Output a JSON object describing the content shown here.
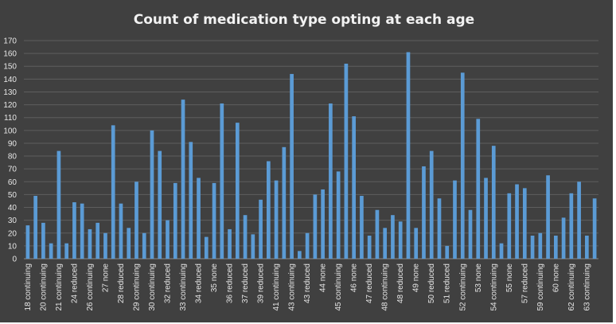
{
  "chart_data": {
    "type": "bar",
    "title": "Count of medication type opting at each age",
    "xlabel": "",
    "ylabel": "",
    "ylim": [
      0,
      170
    ],
    "yticks": [
      0,
      10,
      20,
      30,
      40,
      50,
      60,
      70,
      80,
      90,
      100,
      110,
      120,
      130,
      140,
      150,
      160,
      170
    ],
    "grid": true,
    "legend": "none",
    "bar_color": "#5b9bd5",
    "background_color": "#404040",
    "categories": [
      "18 continuing",
      "",
      "20 continuing",
      "",
      "21 continuing",
      "",
      "24 reduced",
      "",
      "26 continuing",
      "",
      "27 none",
      "",
      "28 reduced",
      "",
      "29 continuing",
      "",
      "30 continuing",
      "",
      "32 reduced",
      "",
      "33 continuing",
      "",
      "34 reduced",
      "",
      "35 none",
      "",
      "36 reduced",
      "",
      "37 reduced",
      "",
      "39 reduced",
      "",
      "41 continuing",
      "",
      "43 continuing",
      "",
      "43 reduced",
      "",
      "44 none",
      "",
      "45 continuing",
      "",
      "46 none",
      "",
      "47 reduced",
      "",
      "48 continuing",
      "",
      "48 reduced",
      "",
      "49 none",
      "",
      "50 reduced",
      "",
      "51 reduced",
      "",
      "52 continuing",
      "",
      "53 none",
      "",
      "54 continuing",
      "",
      "55 none",
      "",
      "57 reduced",
      "",
      "59 continuing",
      "",
      "60 none",
      "",
      "62 continuing",
      "",
      "63 continuing",
      ""
    ],
    "values": [
      26,
      49,
      28,
      12,
      84,
      12,
      44,
      43,
      23,
      28,
      20,
      104,
      43,
      24,
      60,
      20,
      100,
      84,
      30,
      59,
      124,
      91,
      63,
      17,
      59,
      121,
      23,
      106,
      34,
      19,
      46,
      76,
      61,
      87,
      144,
      6,
      20,
      50,
      54,
      121,
      68,
      152,
      111,
      49,
      18,
      38,
      24,
      34,
      29,
      161,
      24,
      72,
      84,
      47,
      10,
      61,
      145,
      38,
      109,
      63,
      88,
      12,
      51,
      58,
      55,
      18,
      20,
      65,
      18,
      32,
      51,
      60,
      18,
      47
    ]
  }
}
